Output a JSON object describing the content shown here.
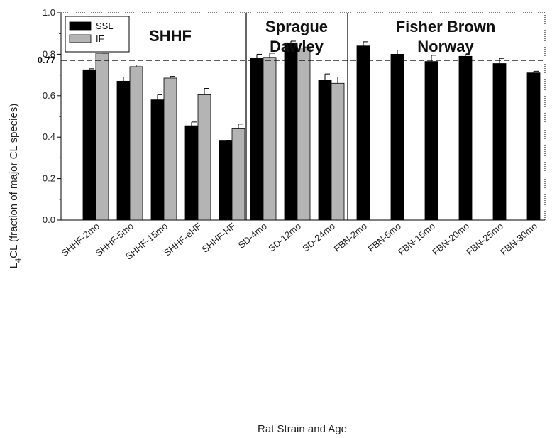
{
  "chart_data": {
    "type": "bar",
    "xlabel": "Rat Strain and Age",
    "ylabel_main": "L",
    "ylabel_sub": "4",
    "ylabel_rest": "CL (fraction of major CL species)",
    "ylim": [
      0.0,
      1.0
    ],
    "yticks": [
      "0.0",
      "0.2",
      "0.4",
      "0.6",
      "0.8",
      "1.0"
    ],
    "reference_line": {
      "value": 0.77,
      "label": "0.77"
    },
    "categories": [
      "SHHF-2mo",
      "SHHF-5mo",
      "SHHF-15mo",
      "SHHF-eHF",
      "SHHF-HF",
      "SD-4mo",
      "SD-12mo",
      "SD-24mo",
      "FBN-2mo",
      "FBN-5mo",
      "FBN-15mo",
      "FBN-20mo",
      "FBN-25mo",
      "FBN-30mo"
    ],
    "series": [
      {
        "name": "SSL",
        "color": "#000000",
        "values": [
          0.725,
          0.67,
          0.58,
          0.455,
          0.385,
          0.78,
          0.855,
          0.675,
          0.84,
          0.8,
          0.765,
          0.79,
          0.755,
          0.71
        ],
        "errors": [
          0.005,
          0.02,
          0.025,
          0.018,
          0.0,
          0.02,
          0.008,
          0.03,
          0.02,
          0.02,
          0.03,
          0.008,
          0.025,
          0.008
        ]
      },
      {
        "name": "IF",
        "color": "#b4b4b4",
        "values": [
          0.805,
          0.74,
          0.685,
          0.605,
          0.44,
          0.785,
          0.83,
          0.66,
          null,
          null,
          null,
          null,
          null,
          null
        ],
        "errors": [
          0.0,
          0.008,
          0.008,
          0.03,
          0.023,
          0.02,
          0.005,
          0.03,
          null,
          null,
          null,
          null,
          null,
          null
        ]
      }
    ],
    "panels": [
      {
        "title_lines": [
          "SHHF"
        ],
        "start": 0,
        "end": 4
      },
      {
        "title_lines": [
          "Sprague",
          "Dawley"
        ],
        "start": 5,
        "end": 7
      },
      {
        "title_lines": [
          "Fisher Brown",
          "Norway"
        ],
        "start": 8,
        "end": 13
      }
    ],
    "legend": {
      "position": "top-left",
      "entries": [
        "SSL",
        "IF"
      ]
    },
    "grid": false
  }
}
